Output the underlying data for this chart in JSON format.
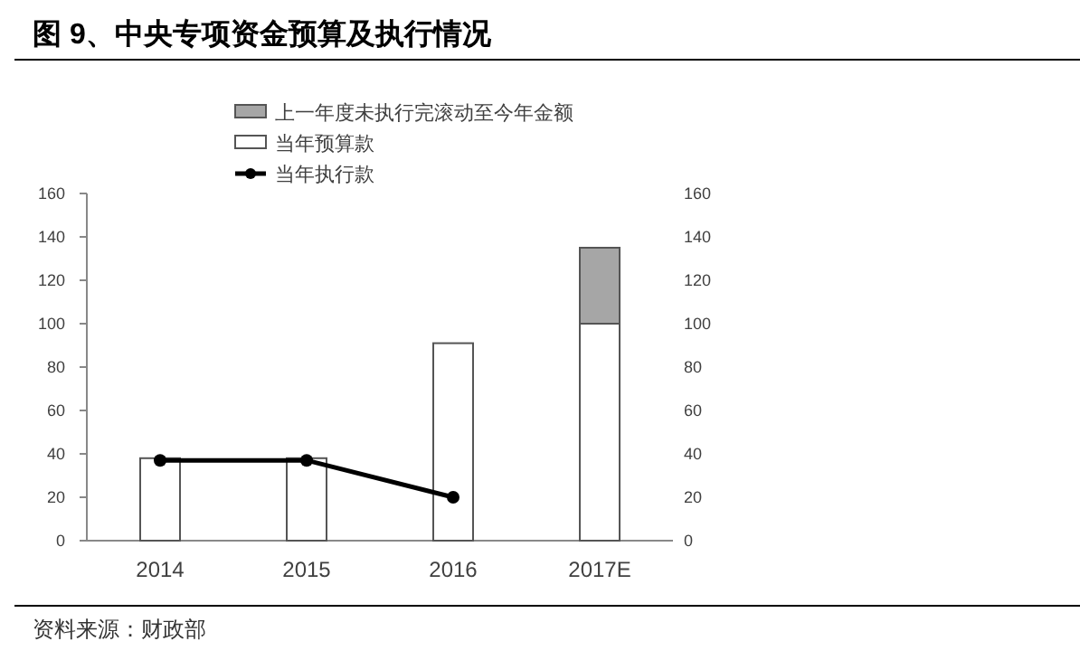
{
  "chart_data": {
    "type": "bar",
    "title": "图 9、中央专项资金预算及执行情况",
    "annotations": [
      "资料来源：财政部"
    ],
    "categories": [
      "2014",
      "2015",
      "2016",
      "2017E"
    ],
    "stacked": true,
    "series": [
      {
        "name": "当年预算款",
        "color": "#ffffff",
        "values": [
          38,
          38,
          91,
          100
        ]
      },
      {
        "name": "上一年度未执行完滚动至今年金额",
        "color": "#a6a6a6",
        "values": [
          null,
          null,
          null,
          35
        ]
      },
      {
        "name": "当年执行款",
        "type": "line",
        "color": "#000000",
        "values": [
          37,
          37,
          20,
          null
        ]
      }
    ],
    "marker": "circle",
    "ylim": [
      0,
      160
    ],
    "yticks": [
      0,
      20,
      40,
      60,
      80,
      100,
      120,
      140,
      160
    ],
    "y2lim": [
      0,
      160
    ],
    "y2ticks": [
      0,
      20,
      40,
      60,
      80,
      100,
      120,
      140,
      160
    ],
    "legend": "top"
  }
}
